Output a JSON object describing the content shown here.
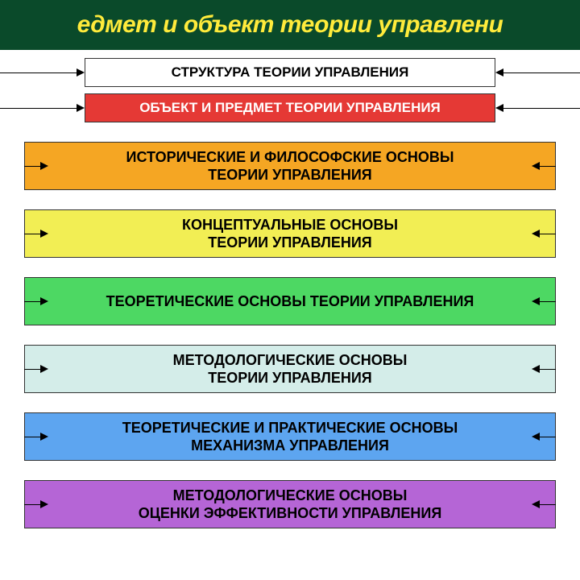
{
  "title": "едмет и объект теории управлени",
  "header": {
    "text": "СТРУКТУРА ТЕОРИИ УПРАВЛЕНИЯ",
    "bg_color": "#ffffff",
    "text_color": "#000000"
  },
  "subheader": {
    "text": "ОБЪЕКТ И ПРЕДМЕТ ТЕОРИИ УПРАВЛЕНИЯ",
    "bg_color": "#e53935",
    "text_color": "#ffffff"
  },
  "boxes": [
    {
      "line1": "ИСТОРИЧЕСКИЕ И ФИЛОСОФСКИЕ ОСНОВЫ",
      "line2": "ТЕОРИИ УПРАВЛЕНИЯ",
      "bg_color": "#f5a623",
      "text_color": "#000000"
    },
    {
      "line1": "КОНЦЕПТУАЛЬНЫЕ ОСНОВЫ",
      "line2": "ТЕОРИИ УПРАВЛЕНИЯ",
      "bg_color": "#f2ee54",
      "text_color": "#000000"
    },
    {
      "line1": "ТЕОРЕТИЧЕСКИЕ ОСНОВЫ ТЕОРИИ УПРАВЛЕНИЯ",
      "line2": "",
      "bg_color": "#4dd863",
      "text_color": "#000000"
    },
    {
      "line1": "МЕТОДОЛОГИЧЕСКИЕ ОСНОВЫ",
      "line2": "ТЕОРИИ УПРАВЛЕНИЯ",
      "bg_color": "#d4ede9",
      "text_color": "#000000"
    },
    {
      "line1": "ТЕОРЕТИЧЕСКИЕ И ПРАКТИЧЕСКИЕ ОСНОВЫ",
      "line2": "МЕХАНИЗМА УПРАВЛЕНИЯ",
      "bg_color": "#5da5f0",
      "text_color": "#000000"
    },
    {
      "line1": "МЕТОДОЛОГИЧЕСКИЕ ОСНОВЫ",
      "line2": "ОЦЕНКИ ЭФФЕКТИВНОСТИ УПРАВЛЕНИЯ",
      "bg_color": "#b565d6",
      "text_color": "#000000"
    }
  ],
  "colors": {
    "header_bg": "#0a4a2a",
    "header_text": "#ffeb3b"
  }
}
